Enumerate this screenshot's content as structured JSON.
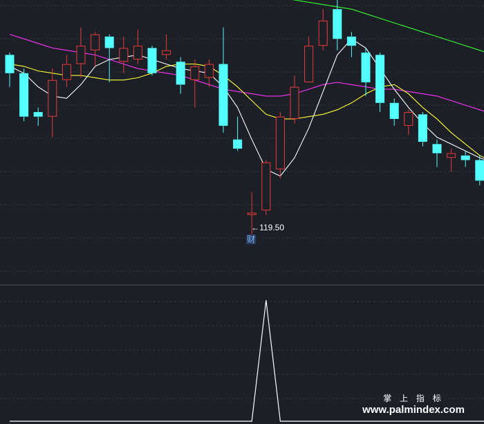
{
  "chart_data": [
    {
      "type": "candlestick",
      "title": "",
      "ylim": [
        110,
        172
      ],
      "grid": true,
      "colors": {
        "up": "#e83b3b",
        "down": "#54ffff",
        "ma5": "#ffffff",
        "ma10": "#ffff33",
        "ma20": "#ff33ff",
        "ma60": "#33ff33",
        "background": "#1c1f26",
        "grid": "#303440"
      },
      "candles": [
        {
          "o": 160.0,
          "h": 160.5,
          "l": 153.0,
          "c": 156.0
        },
        {
          "o": 156.0,
          "h": 157.0,
          "l": 145.5,
          "c": 146.5
        },
        {
          "o": 147.5,
          "h": 148.5,
          "l": 144.5,
          "c": 146.5
        },
        {
          "o": 146.5,
          "h": 157.0,
          "l": 142.0,
          "c": 154.5
        },
        {
          "o": 154.5,
          "h": 160.0,
          "l": 153.0,
          "c": 158.0
        },
        {
          "o": 158.0,
          "h": 166.0,
          "l": 155.0,
          "c": 162.0
        },
        {
          "o": 161.0,
          "h": 165.0,
          "l": 157.5,
          "c": 164.5
        },
        {
          "o": 164.0,
          "h": 164.5,
          "l": 154.0,
          "c": 161.5
        },
        {
          "o": 158.5,
          "h": 164.0,
          "l": 156.0,
          "c": 161.5
        },
        {
          "o": 159.0,
          "h": 165.5,
          "l": 158.0,
          "c": 162.0
        },
        {
          "o": 161.5,
          "h": 162.0,
          "l": 155.5,
          "c": 156.0
        },
        {
          "o": 160.0,
          "h": 164.5,
          "l": 159.0,
          "c": 161.0
        },
        {
          "o": 158.5,
          "h": 159.5,
          "l": 151.5,
          "c": 153.5
        },
        {
          "o": 154.5,
          "h": 159.0,
          "l": 148.5,
          "c": 157.5
        },
        {
          "o": 155.0,
          "h": 159.0,
          "l": 153.0,
          "c": 158.0
        },
        {
          "o": 158.0,
          "h": 166.0,
          "l": 143.0,
          "c": 144.5
        },
        {
          "o": 141.5,
          "h": 146.5,
          "l": 139.0,
          "c": 139.5
        },
        {
          "o": 125.0,
          "h": 130.0,
          "l": 119.5,
          "c": 125.5
        },
        {
          "o": 126.0,
          "h": 137.0,
          "l": 125.0,
          "c": 136.5
        },
        {
          "o": 135.0,
          "h": 147.5,
          "l": 133.0,
          "c": 146.5
        },
        {
          "o": 146.0,
          "h": 155.5,
          "l": 145.0,
          "c": 153.0
        },
        {
          "o": 154.0,
          "h": 164.0,
          "l": 154.0,
          "c": 162.0
        },
        {
          "o": 162.0,
          "h": 170.0,
          "l": 161.0,
          "c": 167.5
        },
        {
          "o": 170.0,
          "h": 172.0,
          "l": 161.0,
          "c": 163.5
        },
        {
          "o": 164.0,
          "h": 165.0,
          "l": 159.5,
          "c": 162.0
        },
        {
          "o": 160.5,
          "h": 161.5,
          "l": 151.0,
          "c": 154.0
        },
        {
          "o": 160.0,
          "h": 160.5,
          "l": 147.5,
          "c": 149.5
        },
        {
          "o": 149.5,
          "h": 150.5,
          "l": 144.5,
          "c": 146.0
        },
        {
          "o": 144.5,
          "h": 148.0,
          "l": 142.5,
          "c": 147.5
        },
        {
          "o": 147.0,
          "h": 147.5,
          "l": 140.0,
          "c": 141.0
        },
        {
          "o": 140.5,
          "h": 141.5,
          "l": 135.5,
          "c": 138.5
        },
        {
          "o": 137.5,
          "h": 139.5,
          "l": 134.5,
          "c": 138.5
        },
        {
          "o": 138.0,
          "h": 139.0,
          "l": 135.5,
          "c": 137.0
        },
        {
          "o": 137.0,
          "h": 138.0,
          "l": 131.5,
          "c": 132.5
        },
        {
          "o": 132.5,
          "h": 136.0,
          "l": 129.5,
          "c": 135.0
        },
        {
          "o": 135.5,
          "h": 138.5,
          "l": 133.5,
          "c": 134.0
        }
      ],
      "ma5": [
        157.5,
        156.0,
        153.0,
        151.0,
        150.5,
        153.5,
        157.5,
        159.0,
        159.5,
        160.0,
        159.0,
        158.0,
        157.0,
        156.5,
        156.0,
        153.0,
        148.5,
        141.5,
        135.0,
        133.5,
        137.5,
        144.0,
        152.0,
        160.0,
        163.5,
        161.5,
        157.0,
        152.5,
        148.5,
        145.0,
        142.0,
        140.5,
        139.0,
        137.5,
        136.5,
        135.5
      ],
      "ma10": [
        158.0,
        157.5,
        156.5,
        156.0,
        155.5,
        155.5,
        155.0,
        154.5,
        154.5,
        155.0,
        156.0,
        157.5,
        158.0,
        158.0,
        157.5,
        155.5,
        153.0,
        150.0,
        147.0,
        146.0,
        146.0,
        146.5,
        147.0,
        148.0,
        149.5,
        151.5,
        153.0,
        153.5,
        151.5,
        148.5,
        146.0,
        143.0,
        140.5,
        138.0,
        136.5,
        135.0
      ],
      "ma20": [
        164.5,
        163.5,
        162.5,
        161.5,
        161.0,
        160.5,
        160.0,
        159.0,
        158.0,
        157.0,
        156.5,
        156.0,
        155.5,
        154.5,
        153.5,
        152.5,
        152.0,
        151.5,
        151.0,
        151.0,
        151.5,
        152.5,
        153.5,
        154.0,
        153.5,
        153.0,
        152.5,
        152.5,
        152.0,
        151.5,
        151.0,
        150.0,
        149.0,
        148.0,
        147.0,
        146.5
      ],
      "ma60": [
        183.0,
        182.8,
        182.6,
        182.3,
        182.0,
        181.8,
        181.5,
        181.0,
        180.5,
        180.0,
        179.5,
        179.0,
        178.5,
        178.0,
        177.0,
        176.0,
        175.0,
        174.0,
        173.0,
        172.5,
        172.0,
        171.5,
        171.0,
        170.5,
        170.0,
        169.0,
        168.0,
        167.0,
        166.0,
        165.0,
        164.0,
        163.0,
        162.0,
        161.0,
        160.0,
        159.0
      ],
      "annotations": [
        {
          "candle_index": 17,
          "price": 119.5,
          "text": "←119.50"
        },
        {
          "candle_index": 17,
          "text": "财"
        }
      ]
    },
    {
      "type": "line",
      "title": "",
      "series": [
        {
          "values": [
            0,
            0,
            0,
            0,
            0,
            0,
            0,
            0,
            0,
            0,
            0,
            0,
            0,
            0,
            0,
            0,
            0,
            0,
            1,
            0,
            0,
            0,
            0,
            0,
            0,
            0,
            0,
            0,
            0,
            0,
            0,
            0,
            0,
            0,
            0,
            0
          ]
        }
      ],
      "ylim": [
        0,
        1
      ],
      "grid": true,
      "colors": {
        "line": "#ffffff"
      }
    }
  ],
  "watermark": {
    "brand": "掌 上 指 标",
    "url": "www.palmindex.com"
  }
}
